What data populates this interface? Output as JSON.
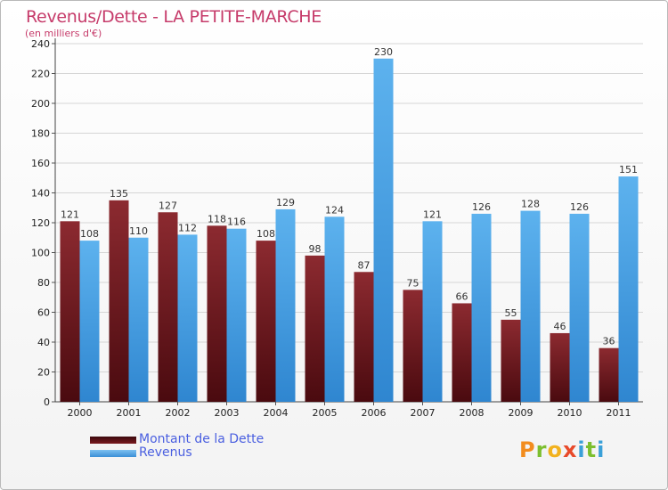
{
  "title": "Revenus/Dette - LA PETITE-MARCHE",
  "subtitle": "(en milliers d'€)",
  "logo": {
    "letters": [
      "P",
      "r",
      "o",
      "x",
      "i",
      "t",
      "i"
    ],
    "colors": [
      "#f28c1e",
      "#7cbf2f",
      "#f2b21e",
      "#e84a2a",
      "#3aa0d8",
      "#7cbf2f",
      "#3aa0d8"
    ]
  },
  "colors": {
    "dette": "#7a1a1f",
    "revenus": "#4aa3e6",
    "title": "#c63b6a",
    "legend_text": "#4a5fe0"
  },
  "chart_data": {
    "type": "bar",
    "categories": [
      "2000",
      "2001",
      "2002",
      "2003",
      "2004",
      "2005",
      "2006",
      "2007",
      "2008",
      "2009",
      "2010",
      "2011"
    ],
    "series": [
      {
        "name": "Montant de la Dette",
        "values": [
          121,
          135,
          127,
          118,
          108,
          98,
          87,
          75,
          66,
          55,
          46,
          36
        ]
      },
      {
        "name": "Revenus",
        "values": [
          108,
          110,
          112,
          116,
          129,
          124,
          230,
          121,
          126,
          128,
          126,
          151
        ]
      }
    ],
    "ylim": [
      0,
      240
    ],
    "yticks": [
      0,
      20,
      40,
      60,
      80,
      100,
      120,
      140,
      160,
      180,
      200,
      220,
      240
    ],
    "grid": true,
    "legend_position": "bottom-left"
  }
}
